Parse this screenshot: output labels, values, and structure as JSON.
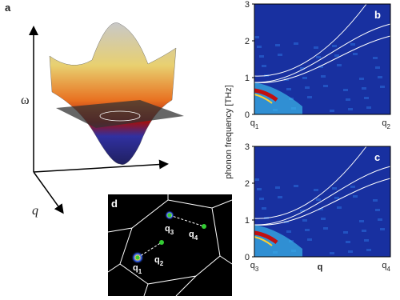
{
  "panels": {
    "a": {
      "label": "a",
      "y_label": "ω",
      "x_label": "q"
    },
    "d": {
      "label": "d",
      "points": [
        {
          "base": "q",
          "sub": "1"
        },
        {
          "base": "q",
          "sub": "2"
        },
        {
          "base": "q",
          "sub": "3"
        },
        {
          "base": "q",
          "sub": "4"
        }
      ]
    }
  },
  "chart_data": [
    {
      "type": "heatmap",
      "panel": "b",
      "y_label": "phonon frequency [THz]",
      "ylim": [
        0,
        3
      ],
      "yticks": [
        0,
        1,
        2,
        3
      ],
      "xlabels": [
        {
          "base": "q",
          "sub": "1"
        },
        {
          "base": "q",
          "sub": "2"
        }
      ]
    },
    {
      "type": "heatmap",
      "panel": "c",
      "x_label": "q",
      "ylim": [
        0,
        3
      ],
      "yticks": [
        0,
        1,
        2,
        3
      ],
      "xlabels": [
        {
          "base": "q",
          "sub": "3"
        },
        {
          "base": "q",
          "sub": "4"
        }
      ]
    }
  ]
}
